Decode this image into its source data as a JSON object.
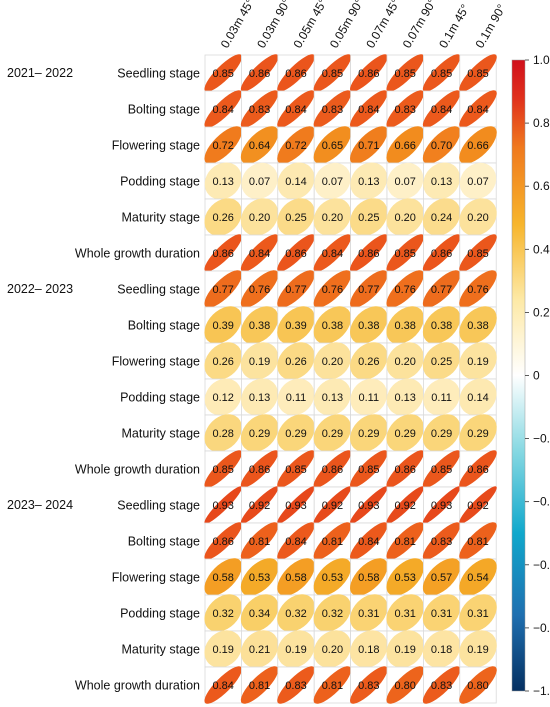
{
  "chart_data": {
    "type": "heatmap",
    "title": "",
    "xlabel": "",
    "ylabel": "",
    "columns": [
      "0.03m 45°",
      "0.03m 90°",
      "0.05m 45°",
      "0.05m 90°",
      "0.07m 45°",
      "0.07m 90°",
      "0.1m 45°",
      "0.1m 90°"
    ],
    "groups": [
      {
        "name": "2021– 2022",
        "rows": [
          {
            "label": "Seedling stage",
            "values": [
              0.85,
              0.86,
              0.86,
              0.85,
              0.86,
              0.85,
              0.85,
              0.85
            ]
          },
          {
            "label": "Bolting stage",
            "values": [
              0.84,
              0.83,
              0.84,
              0.83,
              0.84,
              0.83,
              0.84,
              0.84
            ]
          },
          {
            "label": "Flowering stage",
            "values": [
              0.72,
              0.64,
              0.72,
              0.65,
              0.71,
              0.66,
              0.7,
              0.66
            ]
          },
          {
            "label": "Podding stage",
            "values": [
              0.13,
              0.07,
              0.14,
              0.07,
              0.13,
              0.07,
              0.13,
              0.07
            ]
          },
          {
            "label": "Maturity stage",
            "values": [
              0.26,
              0.2,
              0.25,
              0.2,
              0.25,
              0.2,
              0.24,
              0.2
            ]
          },
          {
            "label": "Whole growth duration",
            "values": [
              0.86,
              0.84,
              0.86,
              0.84,
              0.86,
              0.85,
              0.86,
              0.85
            ]
          }
        ]
      },
      {
        "name": "2022– 2023",
        "rows": [
          {
            "label": "Seedling stage",
            "values": [
              0.77,
              0.76,
              0.77,
              0.76,
              0.77,
              0.76,
              0.77,
              0.76
            ]
          },
          {
            "label": "Bolting stage",
            "values": [
              0.39,
              0.38,
              0.39,
              0.38,
              0.38,
              0.38,
              0.38,
              0.38
            ]
          },
          {
            "label": "Flowering stage",
            "values": [
              0.26,
              0.19,
              0.26,
              0.2,
              0.26,
              0.2,
              0.25,
              0.19
            ]
          },
          {
            "label": "Podding stage",
            "values": [
              0.12,
              0.13,
              0.11,
              0.13,
              0.11,
              0.13,
              0.11,
              0.14
            ]
          },
          {
            "label": "Maturity stage",
            "values": [
              0.28,
              0.29,
              0.29,
              0.29,
              0.29,
              0.29,
              0.29,
              0.29
            ]
          },
          {
            "label": "Whole growth duration",
            "values": [
              0.85,
              0.86,
              0.85,
              0.86,
              0.85,
              0.86,
              0.85,
              0.86
            ]
          }
        ]
      },
      {
        "name": "2023– 2024",
        "rows": [
          {
            "label": "Seedling stage",
            "values": [
              0.93,
              0.92,
              0.93,
              0.92,
              0.93,
              0.92,
              0.93,
              0.92
            ]
          },
          {
            "label": "Bolting stage",
            "values": [
              0.86,
              0.81,
              0.84,
              0.81,
              0.84,
              0.81,
              0.83,
              0.81
            ]
          },
          {
            "label": "Flowering stage",
            "values": [
              0.58,
              0.53,
              0.58,
              0.53,
              0.58,
              0.53,
              0.57,
              0.54
            ]
          },
          {
            "label": "Podding stage",
            "values": [
              0.32,
              0.34,
              0.32,
              0.32,
              0.31,
              0.31,
              0.31,
              0.31
            ]
          },
          {
            "label": "Maturity stage",
            "values": [
              0.19,
              0.21,
              0.19,
              0.2,
              0.18,
              0.19,
              0.18,
              0.19
            ]
          },
          {
            "label": "Whole growth duration",
            "values": [
              0.84,
              0.81,
              0.83,
              0.81,
              0.83,
              0.8,
              0.83,
              0.8
            ]
          }
        ]
      }
    ],
    "colorbar": {
      "range": [
        -1.0,
        1.0
      ],
      "ticks": [
        "1.0",
        "0.8",
        "0.6",
        "0.4",
        "0.2",
        "0",
        "−0.2",
        "−0.4",
        "−0.6",
        "−0.8",
        "−1.0"
      ],
      "colors": [
        "#053061",
        "#2166ac",
        "#00a0c8",
        "#7fd6e0",
        "#ffffff",
        "#fde9a8",
        "#f7b730",
        "#f07a1e",
        "#e03a1c",
        "#b00026"
      ]
    },
    "ellipse_color_scale": [
      "#fff7df",
      "#fde6a8",
      "#f9d06a",
      "#f5b12a",
      "#f28a1e",
      "#ec5a1c",
      "#e33b1b"
    ]
  }
}
